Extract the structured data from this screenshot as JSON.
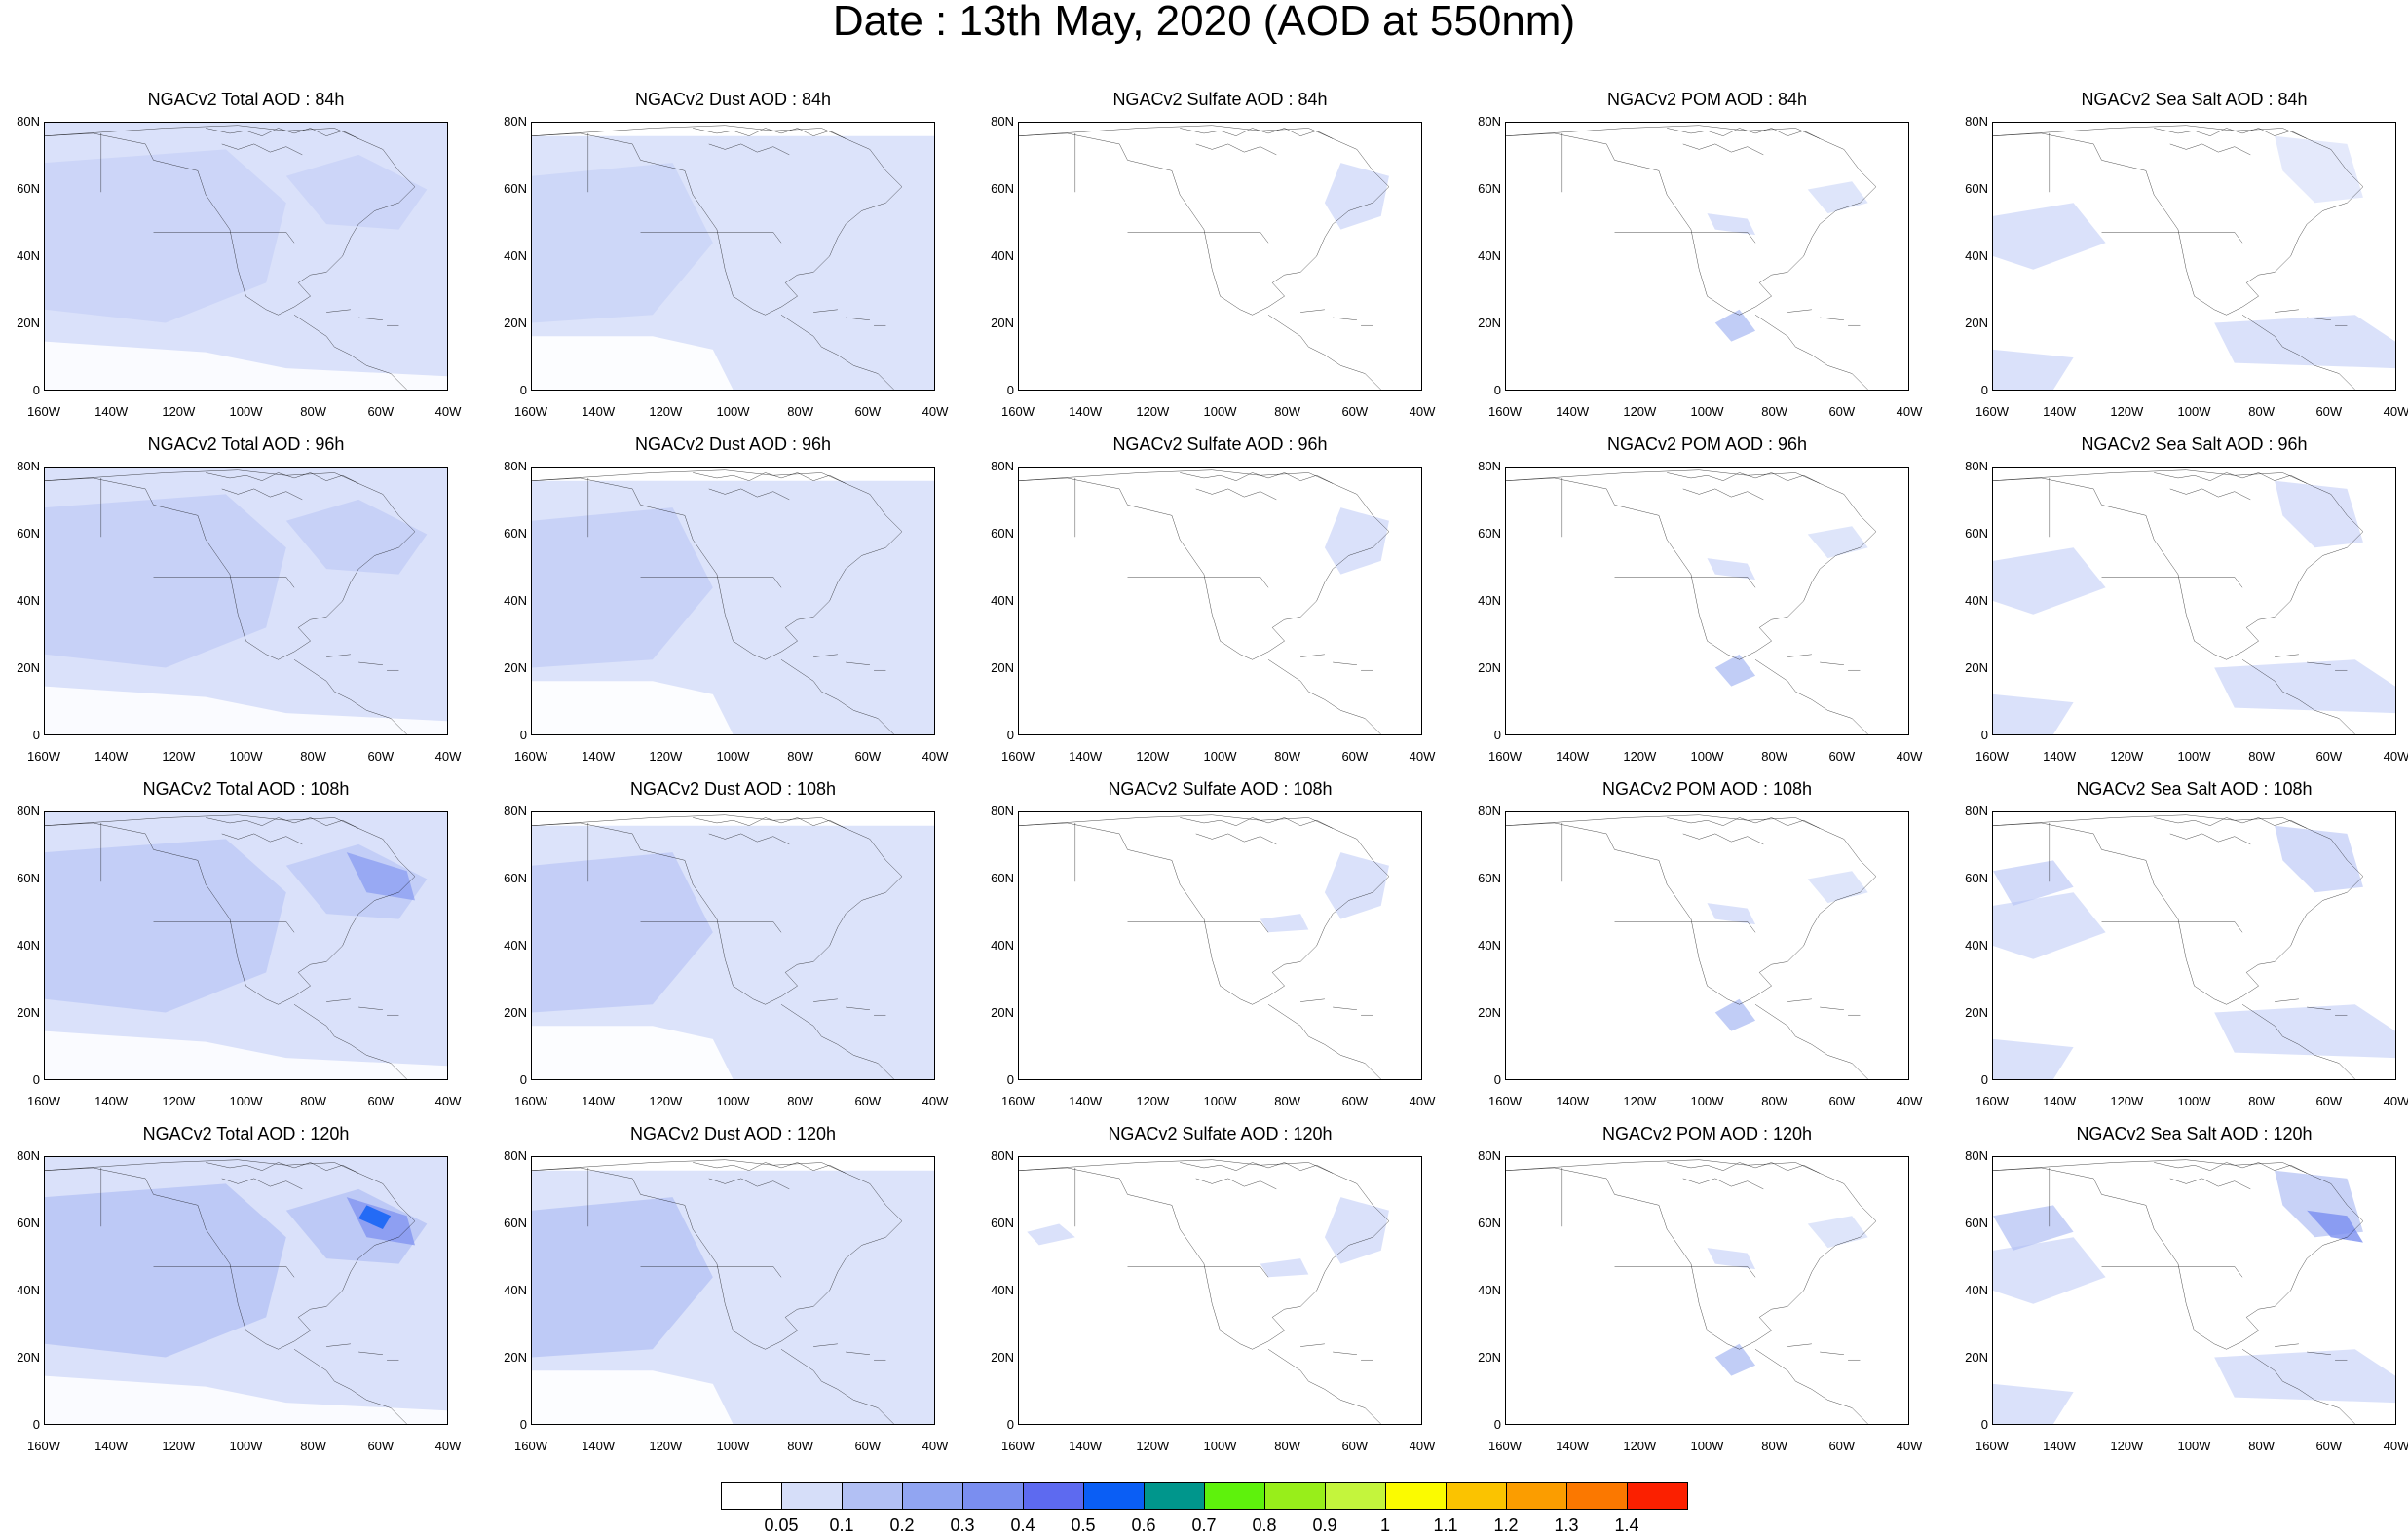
{
  "title": "Date : 13th May, 2020 (AOD at 550nm)",
  "lat_ticks": [
    "80N",
    "60N",
    "40N",
    "20N",
    "0"
  ],
  "lon_ticks": [
    "160W",
    "140W",
    "120W",
    "100W",
    "80W",
    "60W",
    "40W"
  ],
  "panels": [
    [
      "NGACv2 Total AOD : 84h",
      "NGACv2 Dust AOD : 84h",
      "NGACv2 Sulfate AOD : 84h",
      "NGACv2 POM AOD : 84h",
      "NGACv2 Sea Salt AOD : 84h"
    ],
    [
      "NGACv2 Total AOD : 96h",
      "NGACv2 Dust AOD : 96h",
      "NGACv2 Sulfate AOD : 96h",
      "NGACv2 POM AOD : 96h",
      "NGACv2 Sea Salt AOD : 96h"
    ],
    [
      "NGACv2 Total AOD : 108h",
      "NGACv2 Dust AOD : 108h",
      "NGACv2 Sulfate AOD : 108h",
      "NGACv2 POM AOD : 108h",
      "NGACv2 Sea Salt AOD : 108h"
    ],
    [
      "NGACv2 Total AOD : 120h",
      "NGACv2 Dust AOD : 120h",
      "NGACv2 Sulfate AOD : 120h",
      "NGACv2 POM AOD : 120h",
      "NGACv2 Sea Salt  AOD : 120h"
    ]
  ],
  "colorbar": {
    "levels": [
      "0.05",
      "0.1",
      "0.2",
      "0.3",
      "0.4",
      "0.5",
      "0.6",
      "0.7",
      "0.8",
      "0.9",
      "1",
      "1.1",
      "1.2",
      "1.3",
      "1.4"
    ],
    "colors": [
      "#ffffff",
      "#d6def9",
      "#b2c0f4",
      "#91a5f2",
      "#7a8ef0",
      "#5d6af0",
      "#0a5ef5",
      "#00968c",
      "#5ef20c",
      "#98ee1a",
      "#c4f53c",
      "#fbfb00",
      "#fbc300",
      "#fb9d00",
      "#fb7800",
      "#fb2000"
    ]
  },
  "colors": {
    "land_outline": "#000000",
    "aod_light": "#d6def9",
    "aod_mid": "#b2c0f4",
    "aod_high": "#7a8ef0",
    "aod_peak": "#0a5ef5"
  }
}
